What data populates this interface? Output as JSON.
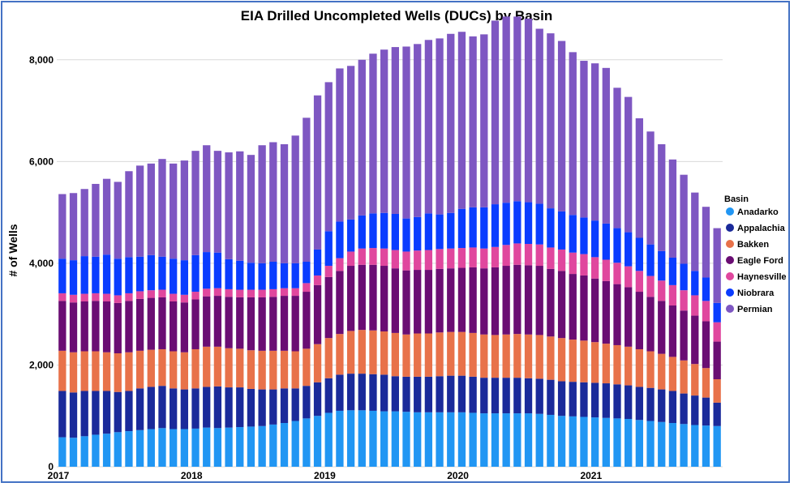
{
  "chart_data": {
    "type": "bar",
    "stacked": true,
    "title": "EIA Drilled Uncompleted Wells (DUCs) by Basin",
    "ylabel": "# of Wells",
    "ylim": [
      0,
      9000
    ],
    "yticks": [
      0,
      2000,
      4000,
      6000,
      8000
    ],
    "ytick_labels": [
      "0",
      "2,000",
      "4,000",
      "6,000",
      "8,000"
    ],
    "x_tick_labels": [
      {
        "label": "2017",
        "index": 0
      },
      {
        "label": "2018",
        "index": 12
      },
      {
        "label": "2019",
        "index": 24
      },
      {
        "label": "2020",
        "index": 36
      },
      {
        "label": "2021",
        "index": 48
      }
    ],
    "grid": "horizontal",
    "legend_title": "Basin",
    "legend_position": "right",
    "categories": [
      "Jan 2017",
      "Feb 2017",
      "Mar 2017",
      "Apr 2017",
      "May 2017",
      "Jun 2017",
      "Jul 2017",
      "Aug 2017",
      "Sep 2017",
      "Oct 2017",
      "Nov 2017",
      "Dec 2017",
      "Jan 2018",
      "Feb 2018",
      "Mar 2018",
      "Apr 2018",
      "May 2018",
      "Jun 2018",
      "Jul 2018",
      "Aug 2018",
      "Sep 2018",
      "Oct 2018",
      "Nov 2018",
      "Dec 2018",
      "Jan 2019",
      "Feb 2019",
      "Mar 2019",
      "Apr 2019",
      "May 2019",
      "Jun 2019",
      "Jul 2019",
      "Aug 2019",
      "Sep 2019",
      "Oct 2019",
      "Nov 2019",
      "Dec 2019",
      "Jan 2020",
      "Feb 2020",
      "Mar 2020",
      "Apr 2020",
      "May 2020",
      "Jun 2020",
      "Jul 2020",
      "Aug 2020",
      "Sep 2020",
      "Oct 2020",
      "Nov 2020",
      "Dec 2020",
      "Jan 2021",
      "Feb 2021",
      "Mar 2021",
      "Apr 2021",
      "May 2021",
      "Jun 2021",
      "Jul 2021",
      "Aug 2021",
      "Sep 2021",
      "Oct 2021",
      "Nov 2021",
      "Dec 2021"
    ],
    "series": [
      {
        "name": "Anadarko",
        "color": "#2196f3",
        "values": [
          580,
          570,
          600,
          630,
          650,
          680,
          700,
          720,
          740,
          760,
          740,
          740,
          750,
          770,
          760,
          770,
          780,
          790,
          800,
          830,
          860,
          900,
          950,
          1000,
          1060,
          1100,
          1110,
          1110,
          1100,
          1090,
          1090,
          1080,
          1070,
          1070,
          1070,
          1070,
          1070,
          1060,
          1050,
          1050,
          1050,
          1050,
          1050,
          1040,
          1020,
          1000,
          990,
          980,
          970,
          960,
          950,
          940,
          920,
          900,
          880,
          860,
          840,
          820,
          810,
          800
        ]
      },
      {
        "name": "Appalachia",
        "color": "#1a2a9a",
        "values": [
          910,
          890,
          890,
          860,
          840,
          790,
          790,
          820,
          830,
          830,
          800,
          780,
          790,
          800,
          820,
          790,
          780,
          740,
          720,
          690,
          680,
          640,
          640,
          660,
          680,
          710,
          720,
          720,
          720,
          720,
          690,
          690,
          700,
          700,
          710,
          720,
          720,
          710,
          700,
          700,
          700,
          700,
          690,
          690,
          690,
          680,
          680,
          680,
          680,
          680,
          670,
          660,
          650,
          650,
          640,
          630,
          600,
          580,
          550,
          460
        ]
      },
      {
        "name": "Bakken",
        "color": "#e8724a",
        "values": [
          790,
          790,
          780,
          780,
          760,
          760,
          760,
          740,
          730,
          720,
          730,
          730,
          770,
          790,
          780,
          770,
          760,
          760,
          760,
          760,
          740,
          730,
          730,
          750,
          790,
          800,
          840,
          860,
          860,
          850,
          850,
          830,
          850,
          850,
          860,
          860,
          860,
          860,
          850,
          840,
          850,
          860,
          860,
          860,
          850,
          850,
          830,
          820,
          800,
          780,
          770,
          760,
          740,
          720,
          700,
          670,
          650,
          620,
          580,
          460
        ]
      },
      {
        "name": "Eagle Ford",
        "color": "#6a0d73",
        "values": [
          980,
          980,
          980,
          990,
          1000,
          990,
          1010,
          1020,
          1020,
          1020,
          980,
          980,
          980,
          990,
          1000,
          1010,
          1010,
          1040,
          1050,
          1060,
          1080,
          1090,
          1120,
          1160,
          1200,
          1240,
          1280,
          1280,
          1290,
          1290,
          1270,
          1260,
          1250,
          1250,
          1250,
          1250,
          1260,
          1290,
          1300,
          1330,
          1350,
          1360,
          1360,
          1360,
          1330,
          1320,
          1290,
          1280,
          1250,
          1230,
          1200,
          1170,
          1130,
          1070,
          1040,
          1010,
          980,
          950,
          920,
          740
        ]
      },
      {
        "name": "Haynesville",
        "color": "#e0479e",
        "values": [
          150,
          150,
          150,
          150,
          150,
          150,
          150,
          150,
          150,
          150,
          150,
          150,
          150,
          150,
          150,
          150,
          150,
          150,
          150,
          150,
          150,
          150,
          170,
          190,
          220,
          250,
          280,
          320,
          330,
          340,
          360,
          370,
          380,
          390,
          390,
          390,
          390,
          390,
          390,
          400,
          410,
          420,
          420,
          420,
          420,
          420,
          420,
          420,
          420,
          420,
          420,
          410,
          410,
          410,
          400,
          400,
          400,
          400,
          400,
          380
        ]
      },
      {
        "name": "Niobrara",
        "color": "#0a3cff",
        "values": [
          680,
          680,
          740,
          720,
          770,
          720,
          710,
          680,
          690,
          650,
          690,
          680,
          720,
          720,
          700,
          590,
          570,
          530,
          520,
          540,
          490,
          490,
          420,
          510,
          680,
          720,
          630,
          650,
          680,
          700,
          710,
          650,
          660,
          720,
          680,
          700,
          770,
          790,
          810,
          840,
          830,
          830,
          820,
          800,
          770,
          750,
          740,
          720,
          720,
          710,
          680,
          670,
          650,
          620,
          580,
          540,
          520,
          480,
          460,
          380
        ]
      },
      {
        "name": "Permian",
        "color": "#7e57c2",
        "values": [
          1270,
          1320,
          1320,
          1430,
          1490,
          1510,
          1690,
          1790,
          1800,
          1920,
          1870,
          1960,
          2050,
          2100,
          2000,
          2100,
          2150,
          2120,
          2320,
          2350,
          2340,
          2510,
          2830,
          3030,
          2930,
          3010,
          3020,
          3060,
          3140,
          3210,
          3280,
          3380,
          3400,
          3410,
          3460,
          3520,
          3480,
          3360,
          3400,
          3610,
          3660,
          3630,
          3610,
          3440,
          3440,
          3350,
          3200,
          3080,
          3090,
          3060,
          2760,
          2660,
          2350,
          2220,
          2100,
          1930,
          1750,
          1540,
          1390,
          1470
        ]
      }
    ]
  }
}
